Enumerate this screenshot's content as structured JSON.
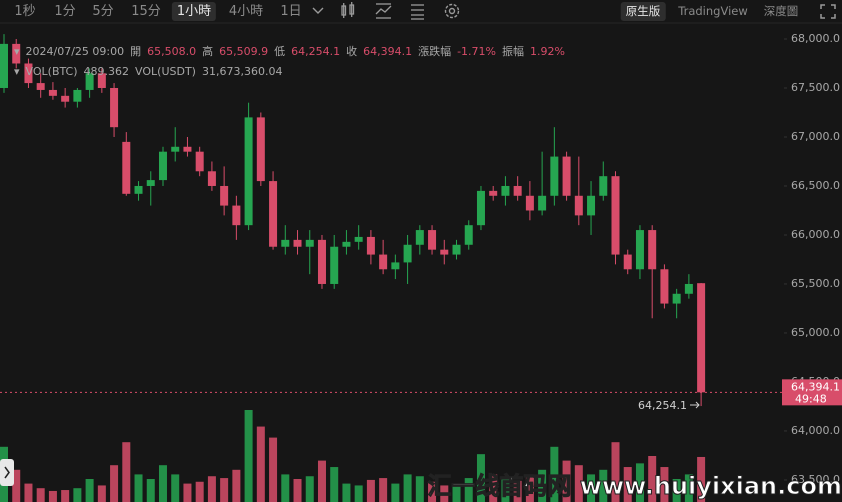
{
  "toolbar": {
    "intervals": [
      "1秒",
      "1分",
      "5分",
      "15分",
      "1小時",
      "4小時",
      "1日"
    ],
    "views": [
      "原生版",
      "TradingView",
      "深度圖"
    ]
  },
  "legend": {
    "time": "2024/07/25 09:00",
    "open_label": "開",
    "open": "65,508.0",
    "high_label": "高",
    "high": "65,509.9",
    "low_label": "低",
    "low": "64,254.1",
    "close_label": "收",
    "close": "64,394.1",
    "change_label": "漲跌幅",
    "change": "-1.71%",
    "amplitude_label": "振幅",
    "amplitude": "1.92%",
    "vol_btc_label": "VOL(BTC)",
    "vol_btc": "489.362",
    "vol_usdt_label": "VOL(USDT)",
    "vol_usdt": "31,673,360.04"
  },
  "watermark": "汇一线首码网 www.huiyixian.com",
  "chart_data": {
    "type": "candlestick",
    "up_color": "#26a651",
    "down_color": "#d84d6a",
    "ylim": [
      63275,
      68153
    ],
    "yticks": [
      {
        "value": 68000,
        "label": "68,000.0"
      },
      {
        "value": 67500,
        "label": "67,500.0"
      },
      {
        "value": 67000,
        "label": "67,000.0"
      },
      {
        "value": 66500,
        "label": "66,500.0"
      },
      {
        "value": 66000,
        "label": "66,000.0"
      },
      {
        "value": 65500,
        "label": "65,500.0"
      },
      {
        "value": 65000,
        "label": "65,000.0"
      },
      {
        "value": 64500,
        "label": "64,500.0"
      },
      {
        "value": 64000,
        "label": "64,000.0"
      },
      {
        "value": 63500,
        "label": "63,500.0"
      }
    ],
    "grid": false,
    "last_price": {
      "value": 64394.1,
      "label": "64,394.1"
    },
    "countdown": "49:48",
    "low_marker": {
      "value": 64254.1,
      "label": "64,254.1"
    },
    "open": [
      67500,
      67950,
      67750,
      67550,
      67480,
      67420,
      67360,
      67480,
      67650,
      67500,
      66950,
      66420,
      66500,
      66560,
      66850,
      66900,
      66850,
      66650,
      66500,
      66300,
      66100,
      67200,
      66550,
      65880,
      65950,
      65880,
      65950,
      65500,
      65880,
      65930,
      65980,
      65800,
      65650,
      65720,
      65900,
      66050,
      65850,
      65800,
      65900,
      66100,
      66450,
      66400,
      66500,
      66400,
      66250,
      66400,
      66800,
      66400,
      66200,
      66400,
      66600,
      65800,
      65650,
      66050,
      65650,
      65300,
      65400,
      65508.0
    ],
    "high": [
      68050,
      68000,
      67800,
      67650,
      67560,
      67500,
      67500,
      67700,
      67700,
      67550,
      67050,
      66550,
      66650,
      66900,
      67100,
      67000,
      66900,
      66750,
      66700,
      66400,
      67350,
      67250,
      66650,
      66100,
      66050,
      66050,
      66000,
      66000,
      66050,
      66100,
      66050,
      65950,
      65800,
      66000,
      66100,
      66100,
      65950,
      65950,
      66150,
      66500,
      66500,
      66600,
      66600,
      66550,
      66850,
      67100,
      66850,
      66800,
      66550,
      66750,
      66650,
      65850,
      66100,
      66100,
      65700,
      65450,
      65600,
      65509.9
    ],
    "low": [
      67450,
      67700,
      67500,
      67400,
      67380,
      67300,
      67300,
      67400,
      67450,
      67000,
      66400,
      66350,
      66300,
      66500,
      66750,
      66800,
      66600,
      66450,
      66200,
      65950,
      66050,
      66500,
      65850,
      65800,
      65800,
      65600,
      65450,
      65450,
      65800,
      65850,
      65700,
      65600,
      65550,
      65500,
      65800,
      65800,
      65700,
      65750,
      65850,
      66050,
      66350,
      66300,
      66350,
      66150,
      66200,
      66300,
      66350,
      66100,
      66000,
      66350,
      65700,
      65600,
      65550,
      65150,
      65250,
      65150,
      65350,
      64254.1
    ],
    "close": [
      67950,
      67750,
      67550,
      67480,
      67420,
      67360,
      67480,
      67650,
      67500,
      67100,
      66420,
      66500,
      66560,
      66850,
      66900,
      66850,
      66650,
      66500,
      66300,
      66100,
      67200,
      66550,
      65880,
      65950,
      65880,
      65950,
      65500,
      65880,
      65930,
      65980,
      65800,
      65650,
      65720,
      65900,
      66050,
      65850,
      65800,
      65900,
      66100,
      66450,
      66400,
      66500,
      66400,
      66250,
      66400,
      66800,
      66400,
      66200,
      66400,
      66600,
      65800,
      65650,
      66050,
      65650,
      65300,
      65400,
      65500,
      64394.1
    ],
    "volume": [
      600,
      350,
      200,
      150,
      120,
      130,
      150,
      250,
      180,
      400,
      650,
      300,
      250,
      400,
      300,
      200,
      220,
      280,
      260,
      350,
      1000,
      820,
      700,
      300,
      250,
      280,
      450,
      380,
      200,
      180,
      240,
      260,
      200,
      300,
      280,
      220,
      180,
      200,
      260,
      520,
      300,
      250,
      230,
      280,
      350,
      600,
      450,
      400,
      300,
      350,
      650,
      380,
      420,
      500,
      380,
      250,
      300,
      489.362
    ]
  }
}
